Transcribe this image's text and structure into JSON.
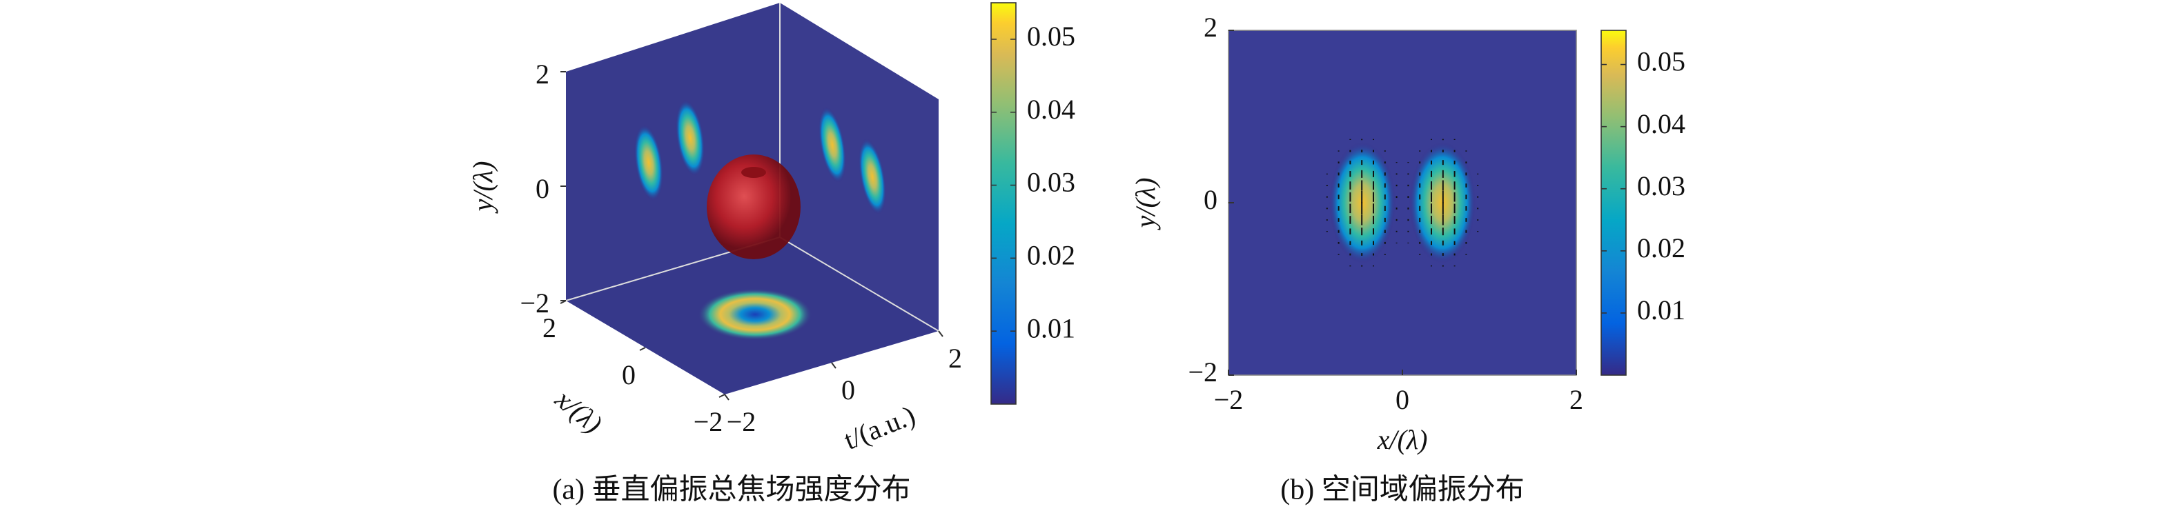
{
  "chart_data": [
    {
      "type": "isosurface",
      "xlabel": "x/(λ)",
      "ylabel": "y/(λ)",
      "zlabel": "t/(a.u.)",
      "xlim": [
        -2,
        2
      ],
      "xticks": [
        {
          "value": -2,
          "label": "−2"
        },
        0,
        2
      ],
      "ylim": [
        -2,
        2
      ],
      "yticks": [
        {
          "value": -2,
          "label": "−2"
        },
        0,
        2
      ],
      "zlim": [
        -2,
        2
      ],
      "zticks": [
        {
          "value": -2,
          "label": "−2"
        },
        0,
        2
      ],
      "clim": [
        0,
        0.055
      ],
      "cticks": [
        0.01,
        0.02,
        0.03,
        0.04,
        0.05
      ],
      "caption": "(a) 垂直偏振总焦场强度分布"
    },
    {
      "type": "heatmap",
      "xlabel": "x/(λ)",
      "ylabel": "y/(λ)",
      "xlim": [
        -2,
        2
      ],
      "xticks": [
        {
          "value": -2,
          "label": "−2"
        },
        0,
        2
      ],
      "ylim": [
        -2,
        2
      ],
      "yticks": [
        {
          "value": -2,
          "label": "−2"
        },
        0,
        2
      ],
      "clim": [
        0,
        0.0555
      ],
      "cticks": [
        0.01,
        0.02,
        0.03,
        0.04,
        0.05
      ],
      "caption": "(b) 空间域偏振分布"
    }
  ]
}
